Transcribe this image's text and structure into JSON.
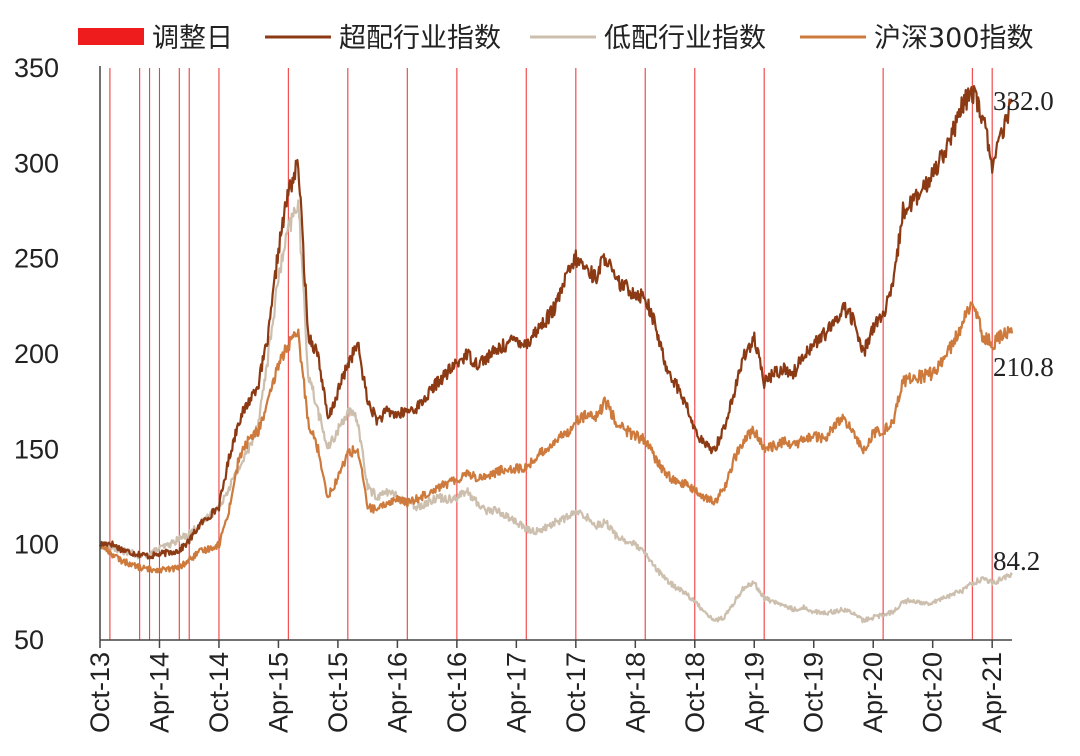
{
  "chart_data": {
    "type": "line",
    "title": "",
    "xlabel": "",
    "ylabel": "",
    "ylim": [
      50,
      350
    ],
    "yticks": [
      50,
      100,
      150,
      200,
      250,
      300,
      350
    ],
    "x_tick_labels": [
      "Oct-13",
      "Apr-14",
      "Oct-14",
      "Apr-15",
      "Oct-15",
      "Apr-16",
      "Oct-16",
      "Apr-17",
      "Oct-17",
      "Apr-18",
      "Oct-18",
      "Apr-19",
      "Oct-19",
      "Apr-20",
      "Oct-20",
      "Apr-21"
    ],
    "x_ticks": [
      "2013-10",
      "2014-04",
      "2014-10",
      "2015-04",
      "2015-10",
      "2016-04",
      "2016-10",
      "2017-04",
      "2017-10",
      "2018-04",
      "2018-10",
      "2019-04",
      "2019-10",
      "2020-04",
      "2020-10",
      "2021-04"
    ],
    "x_range": [
      "2013-10",
      "2021-06"
    ],
    "grid": false,
    "legend_position": "top",
    "legend": [
      {
        "key": "adjust",
        "label": "调整日",
        "kind": "bar",
        "color": "#ee1c1c"
      },
      {
        "key": "over",
        "label": "超配行业指数",
        "kind": "line",
        "color": "#8c3a14"
      },
      {
        "key": "under",
        "label": "低配行业指数",
        "kind": "line",
        "color": "#cdbfae"
      },
      {
        "key": "hs300",
        "label": "沪深300指数",
        "kind": "line",
        "color": "#cd7a3c"
      }
    ],
    "adjustment_dates": [
      "2013-11",
      "2014-02",
      "2014-03",
      "2014-04",
      "2014-06",
      "2014-07",
      "2014-10",
      "2015-05",
      "2015-11",
      "2016-05",
      "2016-10",
      "2017-05",
      "2017-10",
      "2018-05",
      "2018-10",
      "2019-05",
      "2020-05",
      "2021-02",
      "2021-04"
    ],
    "series": [
      {
        "name": "超配行业指数",
        "color": "#8c3a14",
        "end_label": "332.0",
        "points": [
          [
            "2013-10",
            100
          ],
          [
            "2013-11",
            101
          ],
          [
            "2013-12",
            98
          ],
          [
            "2014-01",
            96
          ],
          [
            "2014-02",
            95
          ],
          [
            "2014-03",
            94
          ],
          [
            "2014-04",
            95
          ],
          [
            "2014-05",
            96
          ],
          [
            "2014-06",
            97
          ],
          [
            "2014-07",
            102
          ],
          [
            "2014-08",
            110
          ],
          [
            "2014-09",
            115
          ],
          [
            "2014-10",
            120
          ],
          [
            "2014-11",
            145
          ],
          [
            "2014-12",
            165
          ],
          [
            "2015-01",
            175
          ],
          [
            "2015-02",
            185
          ],
          [
            "2015-03",
            210
          ],
          [
            "2015-04",
            255
          ],
          [
            "2015-05",
            285
          ],
          [
            "2015-06",
            300
          ],
          [
            "2015-07",
            210
          ],
          [
            "2015-08",
            200
          ],
          [
            "2015-09",
            165
          ],
          [
            "2015-10",
            180
          ],
          [
            "2015-11",
            195
          ],
          [
            "2015-12",
            205
          ],
          [
            "2016-01",
            175
          ],
          [
            "2016-02",
            165
          ],
          [
            "2016-03",
            170
          ],
          [
            "2016-04",
            168
          ],
          [
            "2016-05",
            170
          ],
          [
            "2016-06",
            172
          ],
          [
            "2016-07",
            178
          ],
          [
            "2016-08",
            185
          ],
          [
            "2016-09",
            190
          ],
          [
            "2016-10",
            195
          ],
          [
            "2016-11",
            200
          ],
          [
            "2016-12",
            195
          ],
          [
            "2017-01",
            198
          ],
          [
            "2017-02",
            202
          ],
          [
            "2017-03",
            205
          ],
          [
            "2017-04",
            208
          ],
          [
            "2017-05",
            205
          ],
          [
            "2017-06",
            212
          ],
          [
            "2017-07",
            218
          ],
          [
            "2017-08",
            225
          ],
          [
            "2017-09",
            240
          ],
          [
            "2017-10",
            250
          ],
          [
            "2017-11",
            245
          ],
          [
            "2017-12",
            240
          ],
          [
            "2018-01",
            252
          ],
          [
            "2018-02",
            238
          ],
          [
            "2018-03",
            235
          ],
          [
            "2018-04",
            232
          ],
          [
            "2018-05",
            230
          ],
          [
            "2018-06",
            215
          ],
          [
            "2018-07",
            195
          ],
          [
            "2018-08",
            185
          ],
          [
            "2018-09",
            175
          ],
          [
            "2018-10",
            160
          ],
          [
            "2018-11",
            152
          ],
          [
            "2018-12",
            150
          ],
          [
            "2019-01",
            162
          ],
          [
            "2019-02",
            180
          ],
          [
            "2019-03",
            200
          ],
          [
            "2019-04",
            208
          ],
          [
            "2019-05",
            185
          ],
          [
            "2019-06",
            190
          ],
          [
            "2019-07",
            192
          ],
          [
            "2019-08",
            190
          ],
          [
            "2019-09",
            200
          ],
          [
            "2019-10",
            205
          ],
          [
            "2019-11",
            210
          ],
          [
            "2019-12",
            215
          ],
          [
            "2020-01",
            225
          ],
          [
            "2020-02",
            218
          ],
          [
            "2020-03",
            200
          ],
          [
            "2020-04",
            215
          ],
          [
            "2020-05",
            220
          ],
          [
            "2020-06",
            235
          ],
          [
            "2020-07",
            275
          ],
          [
            "2020-08",
            280
          ],
          [
            "2020-09",
            285
          ],
          [
            "2020-10",
            295
          ],
          [
            "2020-11",
            305
          ],
          [
            "2020-12",
            315
          ],
          [
            "2021-01",
            330
          ],
          [
            "2021-02",
            338
          ],
          [
            "2021-03",
            325
          ],
          [
            "2021-04",
            300
          ],
          [
            "2021-05",
            315
          ],
          [
            "2021-06",
            332
          ]
        ]
      },
      {
        "name": "低配行业指数",
        "color": "#cdbfae",
        "end_label": "84.2",
        "points": [
          [
            "2013-10",
            100
          ],
          [
            "2013-11",
            99
          ],
          [
            "2013-12",
            97
          ],
          [
            "2014-01",
            96
          ],
          [
            "2014-02",
            94
          ],
          [
            "2014-03",
            95
          ],
          [
            "2014-04",
            98
          ],
          [
            "2014-05",
            100
          ],
          [
            "2014-06",
            103
          ],
          [
            "2014-07",
            106
          ],
          [
            "2014-08",
            110
          ],
          [
            "2014-09",
            115
          ],
          [
            "2014-10",
            120
          ],
          [
            "2014-11",
            130
          ],
          [
            "2014-12",
            140
          ],
          [
            "2015-01",
            150
          ],
          [
            "2015-02",
            165
          ],
          [
            "2015-03",
            200
          ],
          [
            "2015-04",
            240
          ],
          [
            "2015-05",
            265
          ],
          [
            "2015-06",
            280
          ],
          [
            "2015-07",
            190
          ],
          [
            "2015-08",
            170
          ],
          [
            "2015-09",
            150
          ],
          [
            "2015-10",
            160
          ],
          [
            "2015-11",
            170
          ],
          [
            "2015-12",
            165
          ],
          [
            "2016-01",
            130
          ],
          [
            "2016-02",
            125
          ],
          [
            "2016-03",
            128
          ],
          [
            "2016-04",
            125
          ],
          [
            "2016-05",
            122
          ],
          [
            "2016-06",
            120
          ],
          [
            "2016-07",
            122
          ],
          [
            "2016-08",
            125
          ],
          [
            "2016-09",
            124
          ],
          [
            "2016-10",
            125
          ],
          [
            "2016-11",
            128
          ],
          [
            "2016-12",
            122
          ],
          [
            "2017-01",
            118
          ],
          [
            "2017-02",
            118
          ],
          [
            "2017-03",
            115
          ],
          [
            "2017-04",
            112
          ],
          [
            "2017-05",
            108
          ],
          [
            "2017-06",
            107
          ],
          [
            "2017-07",
            109
          ],
          [
            "2017-08",
            112
          ],
          [
            "2017-09",
            114
          ],
          [
            "2017-10",
            117
          ],
          [
            "2017-11",
            115
          ],
          [
            "2017-12",
            110
          ],
          [
            "2018-01",
            112
          ],
          [
            "2018-02",
            105
          ],
          [
            "2018-03",
            102
          ],
          [
            "2018-04",
            100
          ],
          [
            "2018-05",
            95
          ],
          [
            "2018-06",
            88
          ],
          [
            "2018-07",
            82
          ],
          [
            "2018-08",
            78
          ],
          [
            "2018-09",
            75
          ],
          [
            "2018-10",
            70
          ],
          [
            "2018-11",
            65
          ],
          [
            "2018-12",
            60
          ],
          [
            "2019-01",
            62
          ],
          [
            "2019-02",
            70
          ],
          [
            "2019-03",
            78
          ],
          [
            "2019-04",
            80
          ],
          [
            "2019-05",
            72
          ],
          [
            "2019-06",
            70
          ],
          [
            "2019-07",
            68
          ],
          [
            "2019-08",
            66
          ],
          [
            "2019-09",
            67
          ],
          [
            "2019-10",
            65
          ],
          [
            "2019-11",
            64
          ],
          [
            "2019-12",
            65
          ],
          [
            "2020-01",
            66
          ],
          [
            "2020-02",
            64
          ],
          [
            "2020-03",
            60
          ],
          [
            "2020-04",
            62
          ],
          [
            "2020-05",
            63
          ],
          [
            "2020-06",
            65
          ],
          [
            "2020-07",
            70
          ],
          [
            "2020-08",
            71
          ],
          [
            "2020-09",
            69
          ],
          [
            "2020-10",
            70
          ],
          [
            "2020-11",
            72
          ],
          [
            "2020-12",
            74
          ],
          [
            "2021-01",
            76
          ],
          [
            "2021-02",
            80
          ],
          [
            "2021-03",
            82
          ],
          [
            "2021-04",
            80
          ],
          [
            "2021-05",
            82
          ],
          [
            "2021-06",
            84.2
          ]
        ]
      },
      {
        "name": "沪深300指数",
        "color": "#cd7a3c",
        "end_label": "210.8",
        "points": [
          [
            "2013-10",
            100
          ],
          [
            "2013-11",
            96
          ],
          [
            "2013-12",
            92
          ],
          [
            "2014-01",
            90
          ],
          [
            "2014-02",
            88
          ],
          [
            "2014-03",
            87
          ],
          [
            "2014-04",
            87
          ],
          [
            "2014-05",
            87
          ],
          [
            "2014-06",
            88
          ],
          [
            "2014-07",
            92
          ],
          [
            "2014-08",
            96
          ],
          [
            "2014-09",
            98
          ],
          [
            "2014-10",
            100
          ],
          [
            "2014-11",
            118
          ],
          [
            "2014-12",
            145
          ],
          [
            "2015-01",
            155
          ],
          [
            "2015-02",
            160
          ],
          [
            "2015-03",
            175
          ],
          [
            "2015-04",
            195
          ],
          [
            "2015-05",
            205
          ],
          [
            "2015-06",
            210
          ],
          [
            "2015-07",
            165
          ],
          [
            "2015-08",
            150
          ],
          [
            "2015-09",
            125
          ],
          [
            "2015-10",
            135
          ],
          [
            "2015-11",
            148
          ],
          [
            "2015-12",
            150
          ],
          [
            "2016-01",
            120
          ],
          [
            "2016-02",
            118
          ],
          [
            "2016-03",
            122
          ],
          [
            "2016-04",
            124
          ],
          [
            "2016-05",
            122
          ],
          [
            "2016-06",
            124
          ],
          [
            "2016-07",
            127
          ],
          [
            "2016-08",
            130
          ],
          [
            "2016-09",
            132
          ],
          [
            "2016-10",
            134
          ],
          [
            "2016-11",
            138
          ],
          [
            "2016-12",
            135
          ],
          [
            "2017-01",
            136
          ],
          [
            "2017-02",
            138
          ],
          [
            "2017-03",
            140
          ],
          [
            "2017-04",
            140
          ],
          [
            "2017-05",
            140
          ],
          [
            "2017-06",
            146
          ],
          [
            "2017-07",
            150
          ],
          [
            "2017-08",
            155
          ],
          [
            "2017-09",
            158
          ],
          [
            "2017-10",
            165
          ],
          [
            "2017-11",
            168
          ],
          [
            "2017-12",
            166
          ],
          [
            "2018-01",
            175
          ],
          [
            "2018-02",
            165
          ],
          [
            "2018-03",
            160
          ],
          [
            "2018-04",
            157
          ],
          [
            "2018-05",
            155
          ],
          [
            "2018-06",
            145
          ],
          [
            "2018-07",
            138
          ],
          [
            "2018-08",
            133
          ],
          [
            "2018-09",
            132
          ],
          [
            "2018-10",
            128
          ],
          [
            "2018-11",
            125
          ],
          [
            "2018-12",
            122
          ],
          [
            "2019-01",
            130
          ],
          [
            "2019-02",
            145
          ],
          [
            "2019-03",
            155
          ],
          [
            "2019-04",
            160
          ],
          [
            "2019-05",
            150
          ],
          [
            "2019-06",
            152
          ],
          [
            "2019-07",
            154
          ],
          [
            "2019-08",
            152
          ],
          [
            "2019-09",
            155
          ],
          [
            "2019-10",
            157
          ],
          [
            "2019-11",
            155
          ],
          [
            "2019-12",
            162
          ],
          [
            "2020-01",
            166
          ],
          [
            "2020-02",
            158
          ],
          [
            "2020-03",
            150
          ],
          [
            "2020-04",
            158
          ],
          [
            "2020-05",
            160
          ],
          [
            "2020-06",
            165
          ],
          [
            "2020-07",
            185
          ],
          [
            "2020-08",
            188
          ],
          [
            "2020-09",
            188
          ],
          [
            "2020-10",
            190
          ],
          [
            "2020-11",
            197
          ],
          [
            "2020-12",
            205
          ],
          [
            "2021-01",
            215
          ],
          [
            "2021-02",
            230
          ],
          [
            "2021-03",
            210
          ],
          [
            "2021-04",
            205
          ],
          [
            "2021-05",
            210
          ],
          [
            "2021-06",
            210.8
          ]
        ]
      }
    ]
  }
}
